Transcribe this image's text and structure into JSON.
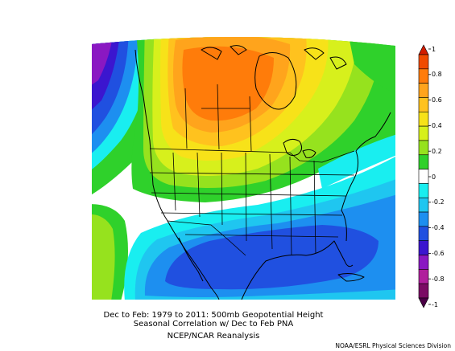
{
  "captions": {
    "line1": "Dec to Feb: 1979 to 2011: 500mb Geopotential Height",
    "line2": "Seasonal Correlation w/ Dec to Feb PNA",
    "line3": "NCEP/NCAR Reanalysis",
    "credit": "NOAA/ESRL Physical Sciences Division"
  },
  "colorbar": {
    "ticks": [
      "1",
      "0.8",
      "0.6",
      "0.4",
      "0.2",
      "0",
      "-0.2",
      "-0.4",
      "-0.6",
      "-0.8",
      "-1"
    ],
    "bands": [
      {
        "range": "0.9 to 1",
        "color": "#d21c00"
      },
      {
        "range": "0.8 to 0.9",
        "color": "#f04a00"
      },
      {
        "range": "0.7 to 0.8",
        "color": "#ff7c0a"
      },
      {
        "range": "0.6 to 0.7",
        "color": "#ffa41c"
      },
      {
        "range": "0.5 to 0.6",
        "color": "#ffc21e"
      },
      {
        "range": "0.4 to 0.5",
        "color": "#f7e219"
      },
      {
        "range": "0.3 to 0.4",
        "color": "#d7f01c"
      },
      {
        "range": "0.2 to 0.3",
        "color": "#96e21e"
      },
      {
        "range": "0.1 to 0.2",
        "color": "#2fd12b"
      },
      {
        "range": "-0.1 to 0.1",
        "color": "#ffffff"
      },
      {
        "range": "-0.2 to -0.1",
        "color": "#19eef0"
      },
      {
        "range": "-0.3 to -0.2",
        "color": "#1fc6f0"
      },
      {
        "range": "-0.4 to -0.3",
        "color": "#1d8ff0"
      },
      {
        "range": "-0.5 to -0.4",
        "color": "#2050e0"
      },
      {
        "range": "-0.6 to -0.5",
        "color": "#3b16cf"
      },
      {
        "range": "-0.7 to -0.6",
        "color": "#8a18c2"
      },
      {
        "range": "-0.8 to -0.7",
        "color": "#b01f9c"
      },
      {
        "range": "-0.9 to -0.8",
        "color": "#7b0b64"
      },
      {
        "range": "-1 to -0.9",
        "color": "#4a0045"
      }
    ]
  }
}
